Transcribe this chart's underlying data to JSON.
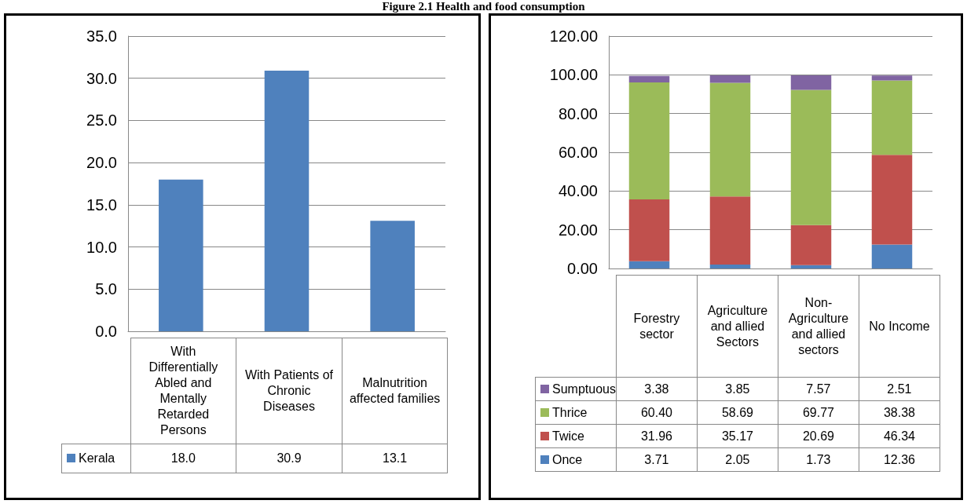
{
  "chart_data": [
    {
      "type": "bar",
      "title": "Figure 2.1 Health and food consumption",
      "categories": [
        "With Differentially Abled and Mentally Retarded Persons",
        "With Patients of Chronic Diseases",
        "Malnutrition affected families"
      ],
      "series": [
        {
          "name": "Kerala",
          "color": "#4f81bd",
          "values": [
            18.0,
            30.9,
            13.1
          ],
          "value_labels": [
            "18.0",
            "30.9",
            "13.1"
          ]
        }
      ],
      "ylim": [
        0,
        35
      ],
      "yticks": [
        {
          "value": 0,
          "label": "0.0"
        },
        {
          "value": 5,
          "label": "5.0"
        },
        {
          "value": 10,
          "label": "10.0"
        },
        {
          "value": 15,
          "label": "15.0"
        },
        {
          "value": 20,
          "label": "20.0"
        },
        {
          "value": 25,
          "label": "25.0"
        },
        {
          "value": 30,
          "label": "30.0"
        },
        {
          "value": 35,
          "label": "35.0"
        }
      ],
      "grid": "y",
      "legend": "bottom"
    },
    {
      "type": "bar",
      "stacked": true,
      "categories": [
        "Forestry sector",
        "Agriculture and allied Sectors",
        "Non-Agriculture and allied sectors",
        "No Income"
      ],
      "series": [
        {
          "name": "Once",
          "color": "#4f81bd",
          "values": [
            3.71,
            2.05,
            1.73,
            12.36
          ],
          "value_labels": [
            "3.71",
            "2.05",
            "1.73",
            "12.36"
          ]
        },
        {
          "name": "Twice",
          "color": "#c0504d",
          "values": [
            31.96,
            35.17,
            20.69,
            46.34
          ],
          "value_labels": [
            "31.96",
            "35.17",
            "20.69",
            "46.34"
          ]
        },
        {
          "name": "Thrice",
          "color": "#9bbb59",
          "values": [
            60.4,
            58.69,
            69.77,
            38.38
          ],
          "value_labels": [
            "60.40",
            "58.69",
            "69.77",
            "38.38"
          ]
        },
        {
          "name": "Sumptuous",
          "color": "#8064a2",
          "values": [
            3.38,
            3.85,
            7.57,
            2.51
          ],
          "value_labels": [
            "3.38",
            "3.85",
            "7.57",
            "2.51"
          ]
        }
      ],
      "ylim": [
        0,
        120
      ],
      "yticks": [
        {
          "value": 0,
          "label": "0.00"
        },
        {
          "value": 20,
          "label": "20.00"
        },
        {
          "value": 40,
          "label": "40.00"
        },
        {
          "value": 60,
          "label": "60.00"
        },
        {
          "value": 80,
          "label": "80.00"
        },
        {
          "value": 100,
          "label": "100.00"
        },
        {
          "value": 120,
          "label": "120.00"
        }
      ],
      "grid": "y",
      "legend": "bottom"
    }
  ]
}
